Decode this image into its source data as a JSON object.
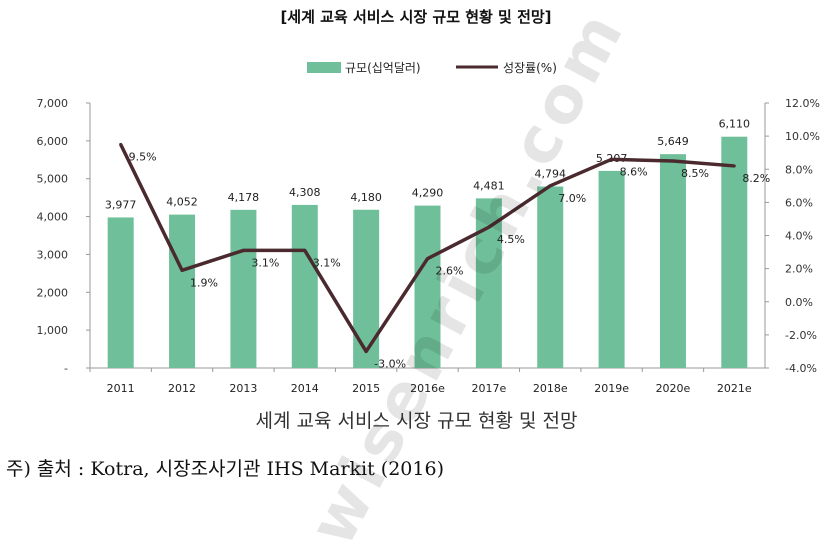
{
  "caption": "세계 교육 서비스 시장 규모 현황 및 전망",
  "source": "주) 출처 : Kotra, 시장조사기관 IHS Markit (2016)",
  "watermark": "wisenrich.com",
  "chart_data": {
    "type": "bar+line",
    "title": "[세계 교육 서비스 시장 규모 현황 및 전망]",
    "categories": [
      "2011",
      "2012",
      "2013",
      "2014",
      "2015",
      "2016e",
      "2017e",
      "2018e",
      "2019e",
      "2020e",
      "2021e"
    ],
    "series": [
      {
        "name": "규모(십억달러)",
        "type": "bar",
        "axis": "left",
        "values": [
          3977,
          4052,
          4178,
          4308,
          4180,
          4290,
          4481,
          4794,
          5207,
          5649,
          6110
        ],
        "labels": [
          "3,977",
          "4,052",
          "4,178",
          "4,308",
          "4,180",
          "4,290",
          "4,481",
          "4,794",
          "5,207",
          "5,649",
          "6,110"
        ],
        "color": "#6fc09a"
      },
      {
        "name": "성장률(%)",
        "type": "line",
        "axis": "right",
        "values": [
          9.5,
          1.9,
          3.1,
          3.1,
          -3.0,
          2.6,
          4.5,
          7.0,
          8.6,
          8.5,
          8.2
        ],
        "labels": [
          "9.5%",
          "1.9%",
          "3.1%",
          "3.1%",
          "-3.0%",
          "2.6%",
          "4.5%",
          "7.0%",
          "8.6%",
          "8.5%",
          "8.2%"
        ],
        "color": "#4a2a2e"
      }
    ],
    "yleft": {
      "min": 0,
      "max": 7000,
      "ticks": [
        0,
        1000,
        2000,
        3000,
        4000,
        5000,
        6000,
        7000
      ],
      "tick_labels": [
        "-",
        "1,000",
        "2,000",
        "3,000",
        "4,000",
        "5,000",
        "6,000",
        "7,000"
      ]
    },
    "yright": {
      "min": -4,
      "max": 12,
      "ticks": [
        -4,
        -2,
        0,
        2,
        4,
        6,
        8,
        10,
        12
      ],
      "tick_labels": [
        "-4.0%",
        "-2.0%",
        "0.0%",
        "2.0%",
        "4.0%",
        "6.0%",
        "8.0%",
        "10.0%",
        "12.0%"
      ]
    },
    "grid": false,
    "legend_position": "top"
  }
}
